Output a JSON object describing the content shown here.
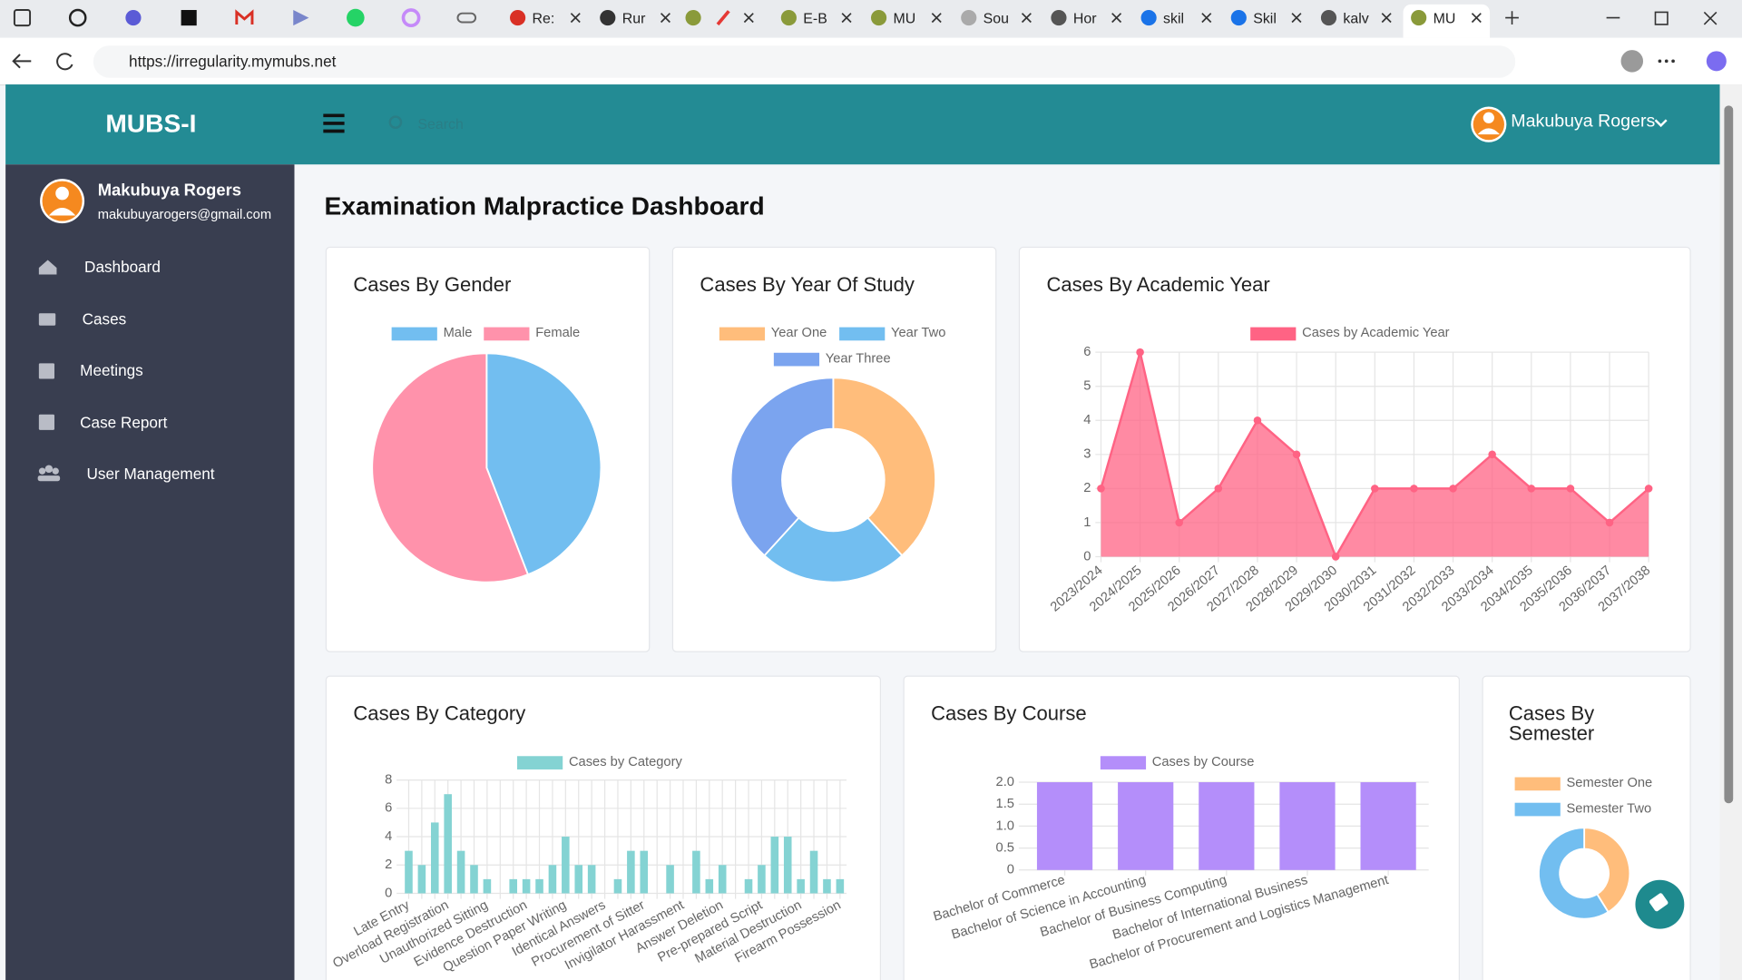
{
  "browser": {
    "tabs": [
      "Re:",
      "Rur",
      "E-B",
      "MU",
      "Sou",
      "Hor",
      "skil",
      "Skil",
      "kalv",
      "MU"
    ],
    "url": "https://irregularity.mymubs.net"
  },
  "app": {
    "brand": "MUBS-I",
    "search": "Search",
    "user": "Makubuya Rogers",
    "profile": {
      "name": "Makubuya Rogers",
      "email": "makubuyarogers@gmail.com"
    },
    "menu": [
      "Dashboard",
      "Cases",
      "Meetings",
      "Case Report",
      "User Management"
    ],
    "page_title": "Examination Malpractice Dashboard"
  },
  "chart_data": [
    {
      "type": "pie",
      "title": "Cases By Gender",
      "categories": [
        "Male",
        "Female"
      ],
      "values": [
        15,
        19
      ],
      "colors": [
        "#72bef0",
        "#ff92ab"
      ]
    },
    {
      "type": "doughnut",
      "title": "Cases By Year Of Study",
      "categories": [
        "Year One",
        "Year Two",
        "Year Three"
      ],
      "values": [
        13,
        8,
        13
      ],
      "colors": [
        "#ffbd7b",
        "#72bef0",
        "#7ba4ef"
      ]
    },
    {
      "type": "line",
      "title": "Cases By Academic Year",
      "categories": [
        "2023/2024",
        "2024/2025",
        "2025/2026",
        "2026/2027",
        "2027/2028",
        "2028/2029",
        "2029/2030",
        "2030/2031",
        "2031/2032",
        "2032/2033",
        "2033/2034",
        "2034/2035",
        "2035/2036",
        "2036/2037",
        "2037/2038"
      ],
      "series": [
        {
          "name": "Cases by Academic Year",
          "color": "#ff6384",
          "values": [
            2,
            6,
            1,
            2,
            4,
            3,
            0,
            2,
            2,
            2,
            3,
            2,
            2,
            1,
            2
          ]
        }
      ],
      "ylim": [
        0,
        6
      ],
      "yticks": [
        0,
        1,
        2,
        3,
        4,
        5,
        6
      ],
      "grid": true
    },
    {
      "type": "bar",
      "title": "Cases By Category",
      "categories": [
        "Late Entry",
        null,
        null,
        "Overload Registration",
        null,
        null,
        "Unauthorized Sitting",
        null,
        null,
        "Evidence Destruction",
        null,
        null,
        "Question Paper Writing",
        null,
        null,
        "Identical Answers",
        null,
        null,
        "Procurement of Sitter",
        null,
        null,
        "Invigilator Harassment",
        null,
        null,
        "Answer Deletion",
        null,
        null,
        "Pre-prepared Script",
        null,
        null,
        "Material Destruction",
        null,
        null,
        "Firearm Possession"
      ],
      "series": [
        {
          "name": "Cases by Category",
          "color": "#84d3d3",
          "values": [
            3,
            2,
            5,
            7,
            3,
            2,
            1,
            0,
            1,
            1,
            1,
            2,
            4,
            2,
            2,
            0,
            1,
            3,
            3,
            0,
            2,
            0,
            3,
            1,
            2,
            0,
            1,
            2,
            4,
            4,
            1,
            3,
            1,
            1
          ]
        }
      ],
      "ylim": [
        0,
        8
      ],
      "yticks": [
        0,
        2,
        4,
        6,
        8
      ],
      "grid": true
    },
    {
      "type": "bar",
      "title": "Cases By Course",
      "categories": [
        "Bachelor of Commerce",
        "Bachelor of Science in Accounting",
        "Bachelor of Business Computing",
        "Bachelor of International Business",
        "Bachelor of Procurement and Logistics Management"
      ],
      "series": [
        {
          "name": "Cases by Course",
          "color": "#b48efa",
          "values": [
            2,
            2,
            2,
            2,
            2
          ]
        }
      ],
      "ylim": [
        0,
        2
      ],
      "yticks": [
        0,
        0.5,
        {
          "value": 1,
          "label": "1.0"
        },
        1.5,
        {
          "value": 2,
          "label": "2.0"
        }
      ],
      "grid": true
    },
    {
      "type": "doughnut",
      "title": "Cases By Semester",
      "categories": [
        "Semester One",
        "Semester Two"
      ],
      "values": [
        14,
        20
      ],
      "colors": [
        "#ffbd7b",
        "#72bef0"
      ]
    }
  ]
}
